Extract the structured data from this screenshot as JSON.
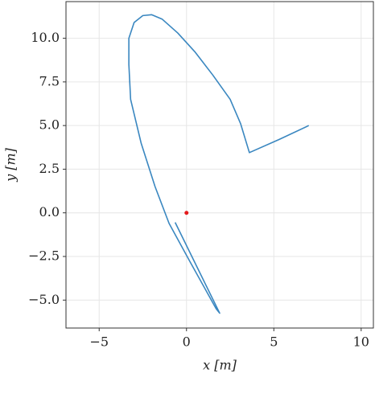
{
  "chart_data": {
    "type": "line",
    "xlabel": "x [m]",
    "ylabel": "y [m]",
    "series": [
      {
        "color": "#3a87c0",
        "mode": "line",
        "x": [
          -0.65,
          1.9,
          1.7,
          0.2,
          -1.0,
          -1.8,
          -2.6,
          -3.2,
          -3.3,
          -3.3,
          -3.0,
          -2.5,
          -2.0,
          -1.4,
          -0.5,
          0.5,
          1.5,
          2.5,
          3.1,
          3.6,
          5.3,
          7.0
        ],
        "values": [
          -0.55,
          -5.75,
          -5.5,
          -2.8,
          -0.6,
          1.5,
          4.0,
          6.5,
          8.5,
          10.0,
          10.9,
          11.3,
          11.35,
          11.1,
          10.3,
          9.2,
          7.9,
          6.5,
          5.1,
          3.45,
          4.2,
          5.0
        ]
      },
      {
        "color": "#e41a1c",
        "mode": "markers",
        "x": [
          0
        ],
        "values": [
          0
        ]
      }
    ],
    "xlim": [
      -6.9,
      10.7
    ],
    "ylim": [
      -6.6,
      12.1
    ],
    "xticks": [
      {
        "value": -5,
        "label": "−5"
      },
      0,
      5,
      10
    ],
    "yticks": [
      {
        "value": -5,
        "label": "−5.0"
      },
      {
        "value": -2.5,
        "label": "−2.5"
      },
      {
        "value": 0,
        "label": "0.0"
      },
      2.5,
      {
        "value": 5,
        "label": "5.0"
      },
      7.5,
      {
        "value": 10,
        "label": "10.0"
      }
    ],
    "grid": true
  }
}
